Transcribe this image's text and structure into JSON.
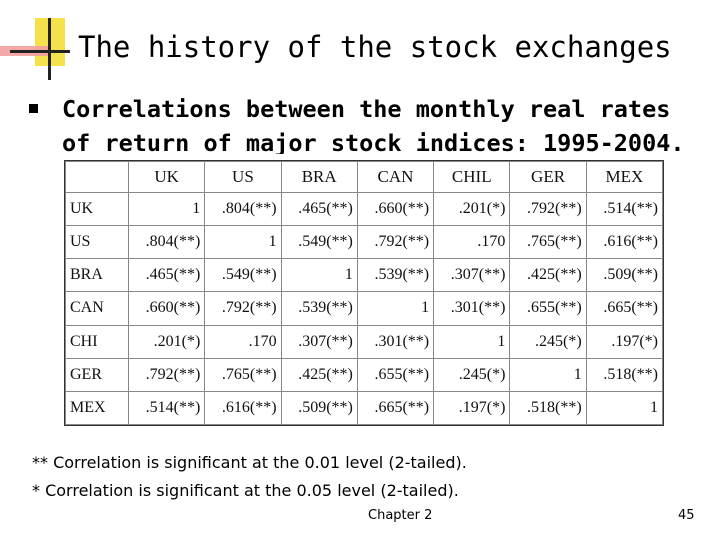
{
  "slide": {
    "title": "The history of the stock exchanges",
    "subtitle": "Correlations between the monthly real rates of return of major stock indices: 1995-2004.",
    "footnote_1": "**  Correlation is significant at the 0.01 level (2-tailed).",
    "footnote_2": "* Correlation is significant at the 0.05 level (2-tailed).",
    "footer": "Chapter 2",
    "page_number": "45"
  },
  "table": {
    "columns": [
      "UK",
      "US",
      "BRA",
      "CAN",
      "CHIL",
      "GER",
      "MEX"
    ],
    "rows": [
      {
        "label": "UK",
        "cells": [
          "1",
          ".804(**)",
          ".465(**)",
          ".660(**)",
          ".201(*)",
          ".792(**)",
          ".514(**)"
        ]
      },
      {
        "label": "US",
        "cells": [
          ".804(**)",
          "1",
          ".549(**)",
          ".792(**)",
          ".170",
          ".765(**)",
          ".616(**)"
        ]
      },
      {
        "label": "BRA",
        "cells": [
          ".465(**)",
          ".549(**)",
          "1",
          ".539(**)",
          ".307(**)",
          ".425(**)",
          ".509(**)"
        ]
      },
      {
        "label": "CAN",
        "cells": [
          ".660(**)",
          ".792(**)",
          ".539(**)",
          "1",
          ".301(**)",
          ".655(**)",
          ".665(**)"
        ]
      },
      {
        "label": "CHI",
        "cells": [
          ".201(*)",
          ".170",
          ".307(**)",
          ".301(**)",
          "1",
          ".245(*)",
          ".197(*)"
        ]
      },
      {
        "label": "GER",
        "cells": [
          ".792(**)",
          ".765(**)",
          ".425(**)",
          ".655(**)",
          ".245(*)",
          "1",
          ".518(**)"
        ]
      },
      {
        "label": "MEX",
        "cells": [
          ".514(**)",
          ".616(**)",
          ".509(**)",
          ".665(**)",
          ".197(*)",
          ".518(**)",
          "1"
        ]
      }
    ]
  }
}
